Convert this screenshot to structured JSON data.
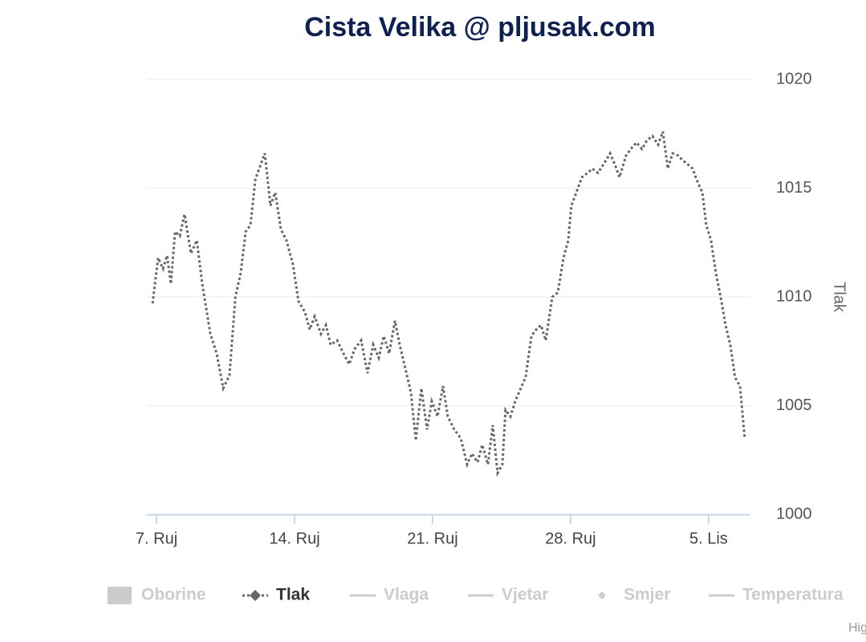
{
  "chart_data": {
    "type": "line",
    "title": "Cista Velika @ pljusak.com",
    "y_axis_title": "Tlak",
    "credits": "Highcharts.com",
    "grid": true,
    "xlim": [
      6.51,
      37.12
    ],
    "xticks": [
      {
        "value": 7,
        "label": "7. Ruj"
      },
      {
        "value": 14,
        "label": "14. Ruj"
      },
      {
        "value": 21,
        "label": "21. Ruj"
      },
      {
        "value": 28,
        "label": "28. Ruj"
      },
      {
        "value": 35,
        "label": "5. Lis"
      }
    ],
    "ylim": [
      1000,
      1020
    ],
    "yticks": [
      1000,
      1005,
      1010,
      1015,
      1020
    ],
    "series": [
      {
        "name": "Oborine",
        "symbol": "column",
        "visible": false
      },
      {
        "name": "Tlak",
        "symbol": "diamond-line",
        "visible": true,
        "color": "#666666",
        "x": [
          6.8,
          7.08,
          7.33,
          7.53,
          7.73,
          7.94,
          8.18,
          8.42,
          8.75,
          9.04,
          9.32,
          9.73,
          10.05,
          10.38,
          10.7,
          11.0,
          11.27,
          11.52,
          11.76,
          12.01,
          12.29,
          12.49,
          12.78,
          13.02,
          13.31,
          13.59,
          13.92,
          14.2,
          14.53,
          14.77,
          15.02,
          15.34,
          15.59,
          15.83,
          16.16,
          16.48,
          16.77,
          17.05,
          17.38,
          17.7,
          17.99,
          18.27,
          18.52,
          18.8,
          19.09,
          19.33,
          19.62,
          19.9,
          20.15,
          20.43,
          20.72,
          20.96,
          21.25,
          21.53,
          21.77,
          22.1,
          22.43,
          22.75,
          23.0,
          23.28,
          23.52,
          23.81,
          24.05,
          24.3,
          24.54,
          24.7,
          24.95,
          25.19,
          25.52,
          25.72,
          26.01,
          26.25,
          26.5,
          26.74,
          27.07,
          27.35,
          27.64,
          27.88,
          28.04,
          28.29,
          28.57,
          28.86,
          29.1,
          29.39,
          29.67,
          30.0,
          30.24,
          30.48,
          30.81,
          31.05,
          31.34,
          31.62,
          31.87,
          32.15,
          32.44,
          32.68,
          32.93,
          33.17,
          33.46,
          33.66,
          33.94,
          34.19,
          34.39,
          34.68,
          34.88,
          35.12,
          35.37,
          35.61,
          35.86,
          36.1,
          36.34,
          36.59,
          36.83
        ],
        "values": [
          1009.7,
          1011.8,
          1011.3,
          1011.9,
          1010.6,
          1013.0,
          1012.8,
          1013.8,
          1012.0,
          1012.6,
          1010.6,
          1008.3,
          1007.4,
          1005.8,
          1006.4,
          1010.0,
          1011.1,
          1013.0,
          1013.3,
          1015.4,
          1016.1,
          1016.6,
          1014.2,
          1014.8,
          1013.1,
          1012.6,
          1011.5,
          1009.8,
          1009.3,
          1008.5,
          1009.1,
          1008.3,
          1008.7,
          1007.8,
          1008.0,
          1007.4,
          1006.9,
          1007.6,
          1008.0,
          1006.5,
          1007.8,
          1007.2,
          1008.2,
          1007.4,
          1008.9,
          1007.8,
          1006.7,
          1005.6,
          1003.4,
          1005.8,
          1003.9,
          1005.2,
          1004.5,
          1005.9,
          1004.5,
          1003.9,
          1003.5,
          1002.3,
          1002.8,
          1002.4,
          1003.2,
          1002.3,
          1004.1,
          1001.9,
          1002.3,
          1004.8,
          1004.5,
          1005.2,
          1005.9,
          1006.3,
          1008.2,
          1008.5,
          1008.7,
          1008.0,
          1010.0,
          1010.2,
          1011.8,
          1012.6,
          1014.2,
          1014.8,
          1015.5,
          1015.7,
          1015.9,
          1015.7,
          1016.1,
          1016.6,
          1016.1,
          1015.5,
          1016.5,
          1016.8,
          1017.1,
          1016.8,
          1017.2,
          1017.4,
          1017.0,
          1017.6,
          1015.9,
          1016.6,
          1016.5,
          1016.3,
          1016.1,
          1015.9,
          1015.4,
          1014.8,
          1013.3,
          1012.6,
          1011.1,
          1010.0,
          1008.7,
          1007.8,
          1006.3,
          1005.9,
          1003.5
        ]
      },
      {
        "name": "Vlaga",
        "symbol": "line",
        "visible": false
      },
      {
        "name": "Vjetar",
        "symbol": "line",
        "visible": false
      },
      {
        "name": "Smjer",
        "symbol": "diamond",
        "visible": false
      },
      {
        "name": "Temperatura",
        "symbol": "line",
        "visible": false
      }
    ]
  }
}
